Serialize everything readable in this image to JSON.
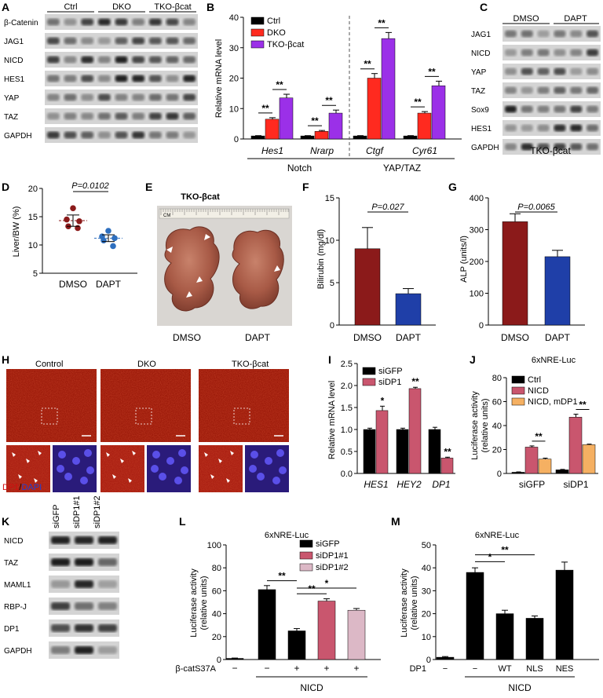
{
  "panels": {
    "A": {
      "letter": "A",
      "groups": [
        "Ctrl",
        "DKO",
        "TKO-βcat"
      ],
      "rows": [
        "β-Catenin",
        "JAG1",
        "NICD",
        "HES1",
        "YAP",
        "TAZ",
        "GAPDH"
      ]
    },
    "C": {
      "letter": "C",
      "groups": [
        "DMSO",
        "DAPT"
      ],
      "rows": [
        "JAG1",
        "NICD",
        "YAP",
        "TAZ",
        "Sox9",
        "HES1",
        "GAPDH"
      ],
      "caption": "TKO-βcat"
    },
    "E": {
      "letter": "E",
      "title": "TKO-βcat",
      "labels": [
        "DMSO",
        "DAPT"
      ],
      "ruler": "CM"
    },
    "H": {
      "letter": "H",
      "titles": [
        "Control",
        "DKO",
        "TKO-βcat"
      ],
      "stain_red": "DP1",
      "stain_sep": "/",
      "stain_blue": "DAPI"
    },
    "K": {
      "letter": "K",
      "lanes": [
        "siGFP",
        "siDP1#1",
        "siDP1#2"
      ],
      "rows": [
        "NICD",
        "TAZ",
        "MAML1",
        "RBP-J",
        "DP1",
        "GAPDH"
      ]
    }
  },
  "chart_data": [
    {
      "panel": "B",
      "type": "bar",
      "ylabel": "Relative mRNA level",
      "ylim": [
        0,
        40
      ],
      "yticks": [
        0,
        10,
        20,
        30,
        40
      ],
      "categories": [
        "Hes1",
        "Nrarp",
        "Ctgf",
        "Cyr61"
      ],
      "groups": [
        {
          "label": "Notch",
          "span": [
            0,
            1
          ]
        },
        {
          "label": "YAP/TAZ",
          "span": [
            2,
            3
          ]
        }
      ],
      "series": [
        {
          "name": "Ctrl",
          "color": "#000000",
          "values": [
            1,
            1,
            1,
            1
          ],
          "err": [
            0.1,
            0.1,
            0.1,
            0.1
          ]
        },
        {
          "name": "DKO",
          "color": "#ff2a1f",
          "values": [
            6.5,
            2.5,
            20,
            8.5
          ],
          "err": [
            0.5,
            0.3,
            1.5,
            0.5
          ]
        },
        {
          "name": "TKO-βcat",
          "color": "#9b30e8",
          "values": [
            13.5,
            8.5,
            33,
            17.5
          ],
          "err": [
            1.2,
            1.0,
            2.0,
            1.5
          ]
        }
      ],
      "sig": [
        "**",
        "**",
        "**",
        "**",
        "**",
        "**",
        "**",
        "**"
      ]
    },
    {
      "panel": "D",
      "type": "scatter",
      "ylabel": "Liver/BW (%)",
      "ylim": [
        5,
        20
      ],
      "yticks": [
        5,
        10,
        15,
        20
      ],
      "categories": [
        "DMSO",
        "DAPT"
      ],
      "series": [
        {
          "name": "DMSO",
          "color": "#8b1a1a",
          "values": [
            16.5,
            14.5,
            14.2,
            13.3,
            13.0
          ],
          "mean": 14.3,
          "err": 1.0
        },
        {
          "name": "DAPT",
          "color": "#2e6fbf",
          "values": [
            12.5,
            11.5,
            11.2,
            10.8,
            9.8
          ],
          "mean": 11.2,
          "err": 0.6
        }
      ],
      "pvalue": "P=0.0102"
    },
    {
      "panel": "F",
      "type": "bar",
      "ylabel": "Bilirubin (mg/dl)",
      "ylim": [
        0,
        15
      ],
      "yticks": [
        0,
        5,
        10,
        15
      ],
      "categories": [
        "DMSO",
        "DAPT"
      ],
      "values": [
        9.0,
        3.7
      ],
      "err": [
        2.5,
        0.6
      ],
      "colors": [
        "#8b1a1a",
        "#1f3fa8"
      ],
      "pvalue": "P=0.027"
    },
    {
      "panel": "G",
      "type": "bar",
      "ylabel": "ALP (units/l)",
      "ylim": [
        0,
        400
      ],
      "yticks": [
        0,
        100,
        200,
        300,
        400
      ],
      "categories": [
        "DMSO",
        "DAPT"
      ],
      "values": [
        325,
        215
      ],
      "err": [
        25,
        20
      ],
      "colors": [
        "#8b1a1a",
        "#1f3fa8"
      ],
      "pvalue": "P=0.0065"
    },
    {
      "panel": "I",
      "type": "bar",
      "ylabel": "Relative mRNA level",
      "ylim": [
        0,
        2.5
      ],
      "yticks": [
        0.0,
        0.5,
        1.0,
        1.5,
        2.0,
        2.5
      ],
      "categories": [
        "HES1",
        "HEY2",
        "DP1"
      ],
      "series": [
        {
          "name": "siGFP",
          "color": "#000000",
          "values": [
            1.0,
            1.0,
            1.0
          ],
          "err": [
            0.03,
            0.03,
            0.05
          ]
        },
        {
          "name": "siDP1",
          "color": "#c9566e",
          "values": [
            1.43,
            1.93,
            0.35
          ],
          "err": [
            0.1,
            0.03,
            0.02
          ]
        }
      ],
      "sig": [
        "*",
        "**",
        "**"
      ]
    },
    {
      "panel": "J",
      "type": "bar",
      "title": "6xNRE-Luc",
      "ylabel": "Luciferase activity\n(relative units)",
      "ylim": [
        0,
        80
      ],
      "yticks": [
        0,
        20,
        40,
        60,
        80
      ],
      "categories": [
        "siGFP",
        "siDP1"
      ],
      "series": [
        {
          "name": "Ctrl",
          "color": "#000000",
          "values": [
            1,
            3
          ],
          "err": [
            0.3,
            0.4
          ]
        },
        {
          "name": "NICD",
          "color": "#c9566e",
          "values": [
            22,
            47
          ],
          "err": [
            1.0,
            2.5
          ]
        },
        {
          "name": "NICD, mDP1",
          "color": "#f5b062",
          "values": [
            12,
            24
          ],
          "err": [
            0.8,
            0.5
          ]
        }
      ],
      "sig": [
        "**",
        "**"
      ]
    },
    {
      "panel": "L",
      "type": "bar",
      "title": "6xNRE-Luc",
      "ylabel": "Luciferase activity\n(relative units)",
      "ylim": [
        0,
        100
      ],
      "yticks": [
        0,
        20,
        40,
        60,
        80,
        100
      ],
      "values": [
        1,
        61,
        25,
        51,
        43
      ],
      "err": [
        0.3,
        3.5,
        2.0,
        2.0,
        1.5
      ],
      "series": [
        {
          "name": "siGFP",
          "color": "#000000"
        },
        {
          "name": "siDP1#1",
          "color": "#c9566e"
        },
        {
          "name": "siDP1#2",
          "color": "#dcb8c6"
        }
      ],
      "bar_series": [
        0,
        0,
        0,
        1,
        2
      ],
      "row_label": "β-catS37A",
      "row_values": [
        "−",
        "−",
        "+",
        "+",
        "+"
      ],
      "group_label": "NICD",
      "sig": [
        "**",
        "**",
        "*"
      ]
    },
    {
      "panel": "M",
      "type": "bar",
      "title": "6xNRE-Luc",
      "ylabel": "Luciferase activity\n(relative units)",
      "ylim": [
        0,
        50
      ],
      "yticks": [
        0,
        10,
        20,
        30,
        40,
        50
      ],
      "values": [
        1,
        38,
        20,
        18,
        39
      ],
      "err": [
        0.3,
        2.0,
        1.5,
        1.0,
        3.5
      ],
      "color": "#000000",
      "row_label": "DP1",
      "row_values": [
        "−",
        "−",
        "WT",
        "NLS",
        "NES"
      ],
      "group_label": "NICD",
      "sig": [
        "**",
        "*"
      ]
    }
  ]
}
